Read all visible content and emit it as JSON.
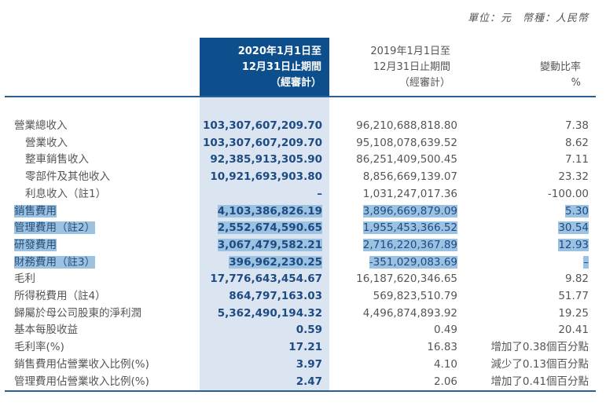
{
  "unit_line": {
    "unit": "單位：元",
    "currency": "幣種：人民幣"
  },
  "headers": {
    "current": [
      "2020年1月1日至",
      "12月31日止期間",
      "（經審計）"
    ],
    "previous": [
      "2019年1月1日至",
      "12月31日止期間",
      "（經審計）"
    ],
    "change": [
      "變動比率",
      "%"
    ]
  },
  "colors": {
    "header_bg": "#0d4e8d",
    "column_bg": "#dbe5f1",
    "highlight": "#9cc2e2",
    "value": "#1d4b82"
  },
  "rows": [
    {
      "label": "營業總收入",
      "current": "103,307,607,209.70",
      "previous": "96,210,688,818.80",
      "change": "7.38"
    },
    {
      "label": "營業收入",
      "current": "103,307,607,209.70",
      "previous": "95,108,078,639.52",
      "change": "8.62"
    },
    {
      "label": "整車銷售收入",
      "current": "92,385,913,305.90",
      "previous": "86,251,409,500.45",
      "change": "7.11"
    },
    {
      "label": "零部件及其他收入",
      "current": "10,921,693,903.80",
      "previous": "8,856,669,139.07",
      "change": "23.32"
    },
    {
      "label": "利息收入（註1）",
      "current": "–",
      "previous": "1,031,247,017.36",
      "change": "-100.00"
    },
    {
      "label": "銷售費用",
      "current": "4,103,386,826.19",
      "previous": "3,896,669,879.09",
      "change": "5.30"
    },
    {
      "label": "管理費用（註2）",
      "current": "2,552,674,590.65",
      "previous": "1,955,453,366.52",
      "change": "30.54"
    },
    {
      "label": "研發費用",
      "current": "3,067,479,582.21",
      "previous": "2,716,220,367.89",
      "change": "12.93"
    },
    {
      "label": "財務費用（註3）",
      "current": "396,962,230.25",
      "previous": "-351,029,083.69",
      "change": "–"
    },
    {
      "label": "毛利",
      "current": "17,776,643,454.67",
      "previous": "16,187,620,346.65",
      "change": "9.82"
    },
    {
      "label": "所得税費用（註4）",
      "current": "864,797,163.03",
      "previous": "569,823,510.79",
      "change": "51.77"
    },
    {
      "label": "歸屬於母公司股東的淨利潤",
      "current": "5,362,490,194.32",
      "previous": "4,496,874,893.92",
      "change": "19.25"
    },
    {
      "label": "基本每股收益",
      "current": "0.59",
      "previous": "0.49",
      "change": "20.41"
    },
    {
      "label": "毛利率(%)",
      "current": "17.21",
      "previous": "16.83",
      "change": "增加了0.38個百分點"
    },
    {
      "label": "銷售費用佔營業收入比例(%)",
      "current": "3.97",
      "previous": "4.10",
      "change": "減少了0.13個百分點"
    },
    {
      "label": "管理費用佔營業收入比例(%)",
      "current": "2.47",
      "previous": "2.06",
      "change": "增加了0.41個百分點"
    }
  ]
}
